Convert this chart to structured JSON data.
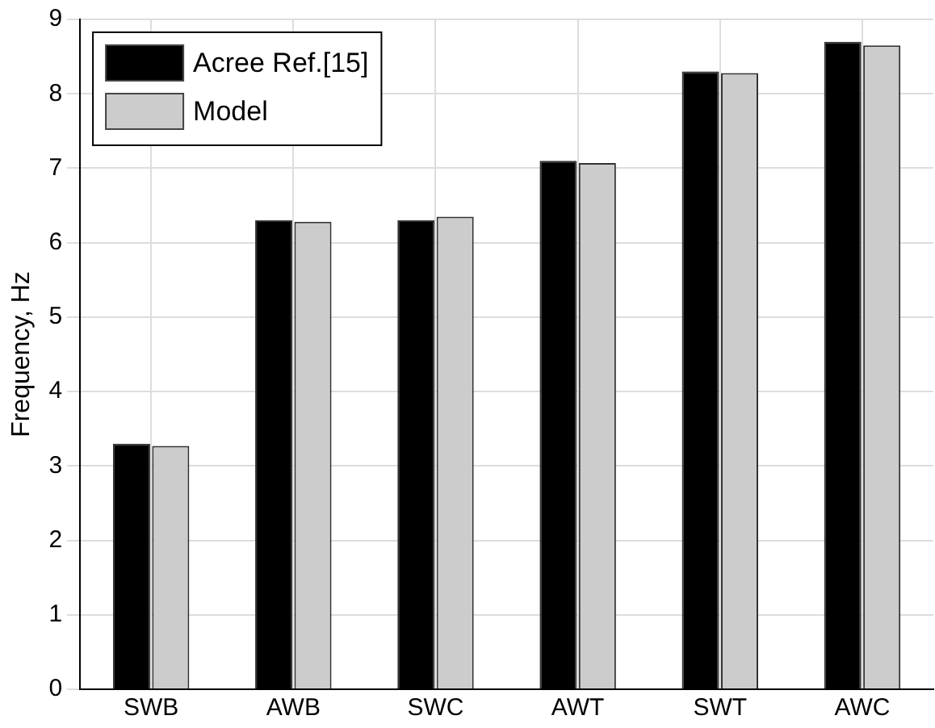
{
  "chart_data": {
    "type": "bar",
    "ylabel": "Frequency, Hz",
    "categories": [
      "SWB",
      "AWB",
      "SWC",
      "AWT",
      "SWT",
      "AWC"
    ],
    "series": [
      {
        "name": "Acree Ref.[15]",
        "color": "#000000",
        "values": [
          3.3,
          6.3,
          6.3,
          7.1,
          8.3,
          8.7
        ]
      },
      {
        "name": "Model",
        "color": "#cccccc",
        "values": [
          3.27,
          6.28,
          6.35,
          7.07,
          8.28,
          8.65
        ]
      }
    ],
    "ylim": [
      0,
      9
    ],
    "yticks": [
      0,
      1,
      2,
      3,
      4,
      5,
      6,
      7,
      8,
      9
    ],
    "grid": true,
    "legend": "top left"
  }
}
